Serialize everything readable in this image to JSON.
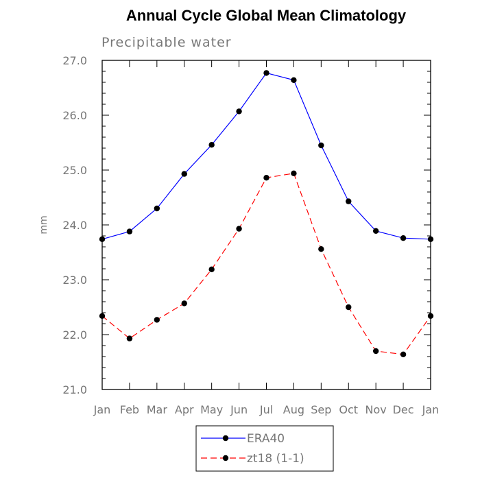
{
  "chart_data": {
    "type": "line",
    "title": "Annual Cycle Global Mean Climatology",
    "subtitle": "Precipitable water",
    "xlabel": "",
    "ylabel": "mm",
    "categories": [
      "Jan",
      "Feb",
      "Mar",
      "Apr",
      "May",
      "Jun",
      "Jul",
      "Aug",
      "Sep",
      "Oct",
      "Nov",
      "Dec",
      "Jan"
    ],
    "ylim": [
      21.0,
      27.0
    ],
    "yticks": [
      "21.0",
      "22.0",
      "23.0",
      "24.0",
      "25.0",
      "26.0",
      "27.0"
    ],
    "grid": false,
    "legend_position": "bottom",
    "series": [
      {
        "name": "ERA40",
        "color": "#0000ff",
        "dash": "solid",
        "marker": "circle",
        "values": [
          23.74,
          23.88,
          24.3,
          24.93,
          25.46,
          26.07,
          26.77,
          26.64,
          25.45,
          24.43,
          23.89,
          23.76,
          23.74
        ]
      },
      {
        "name": "zt18 (1-1)",
        "color": "#ff0000",
        "dash": "dashed",
        "marker": "circle",
        "values": [
          22.34,
          21.93,
          22.27,
          22.57,
          23.19,
          23.93,
          24.86,
          24.94,
          23.56,
          22.5,
          21.7,
          21.64,
          22.34
        ]
      }
    ]
  }
}
